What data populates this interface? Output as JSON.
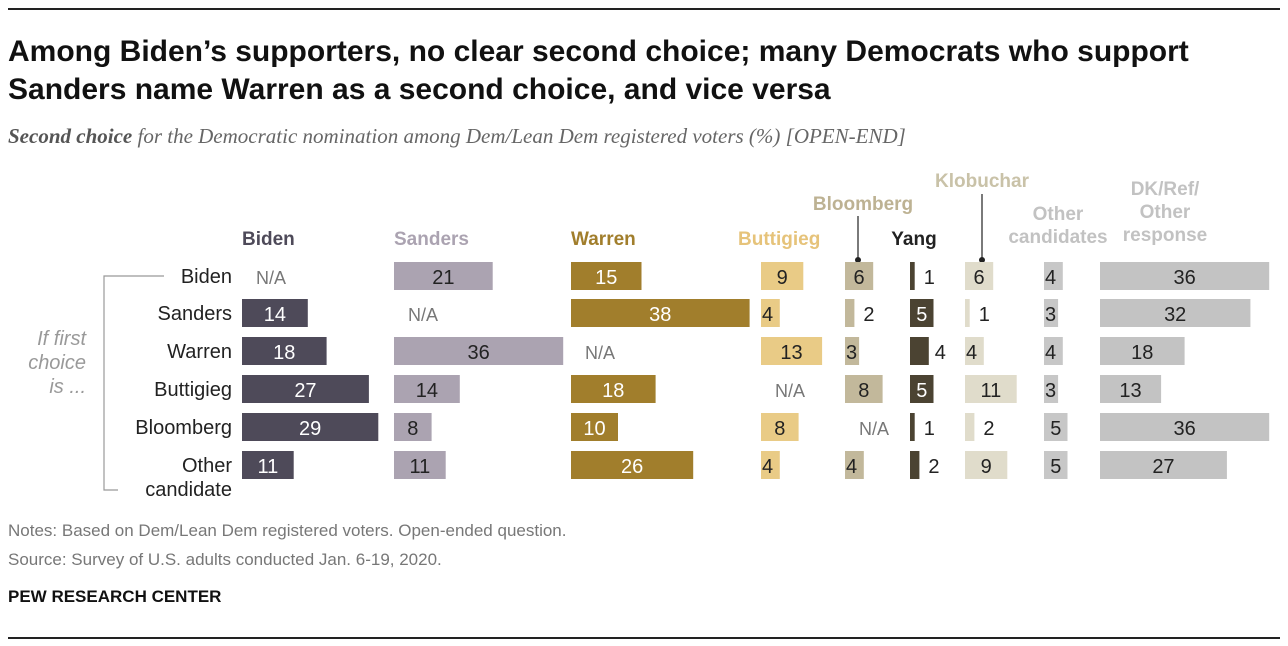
{
  "title": "Among Biden’s supporters, no clear second choice; many Democrats who support Sanders name Warren as a second choice, and vice versa",
  "subtitle_emphasis": "Second choice",
  "subtitle_rest": " for the Democratic nomination among Dem/Lean Dem registered voters (%) [OPEN-END]",
  "notes": "Notes: Based on Dem/Lean Dem registered voters. Open-ended question.",
  "source": "Source: Survey of U.S. adults conducted Jan. 6-19, 2020.",
  "organization": "PEW RESEARCH CENTER",
  "chart_data": {
    "type": "bar",
    "row_group_label": [
      "If first",
      "choice",
      "is ..."
    ],
    "categories": [
      "Biden",
      "Sanders",
      "Warren",
      "Buttigieg",
      "Bloomberg",
      "Other candidate"
    ],
    "na_label": "N/A",
    "series": [
      {
        "name": "Biden",
        "color": "#4e4a59",
        "label_color": "#4e4a59",
        "values": [
          null,
          14,
          18,
          27,
          29,
          11
        ]
      },
      {
        "name": "Sanders",
        "color": "#aba3b1",
        "label_color": "#aba3b1",
        "values": [
          21,
          null,
          36,
          14,
          8,
          11
        ]
      },
      {
        "name": "Warren",
        "color": "#a17e2c",
        "label_color": "#a17e2c",
        "values": [
          15,
          38,
          null,
          18,
          10,
          26
        ]
      },
      {
        "name": "Buttigieg",
        "color": "#e9cb86",
        "label_color": "#e6c37a",
        "values": [
          9,
          4,
          13,
          null,
          8,
          4
        ]
      },
      {
        "name": "Bloomberg",
        "color": "#c2b89b",
        "label_color": "#bdb293",
        "values": [
          6,
          2,
          3,
          8,
          null,
          4
        ]
      },
      {
        "name": "Yang",
        "color": "#4b4332",
        "label_color": "#222222",
        "values": [
          1,
          5,
          4,
          5,
          1,
          2
        ]
      },
      {
        "name": "Klobuchar",
        "color": "#e0dccb",
        "label_color": "#c9c2a8",
        "values": [
          6,
          1,
          4,
          11,
          2,
          9
        ]
      },
      {
        "name": "Other candidates",
        "color": "#c7c7c7",
        "label_color": "#c2c2c2",
        "values": [
          4,
          3,
          4,
          3,
          5,
          5
        ]
      },
      {
        "name": "DK/Ref/Other response",
        "color": "#c3c3c3",
        "label_color": "#c2c2c2",
        "values": [
          36,
          32,
          18,
          13,
          36,
          27
        ]
      }
    ]
  }
}
